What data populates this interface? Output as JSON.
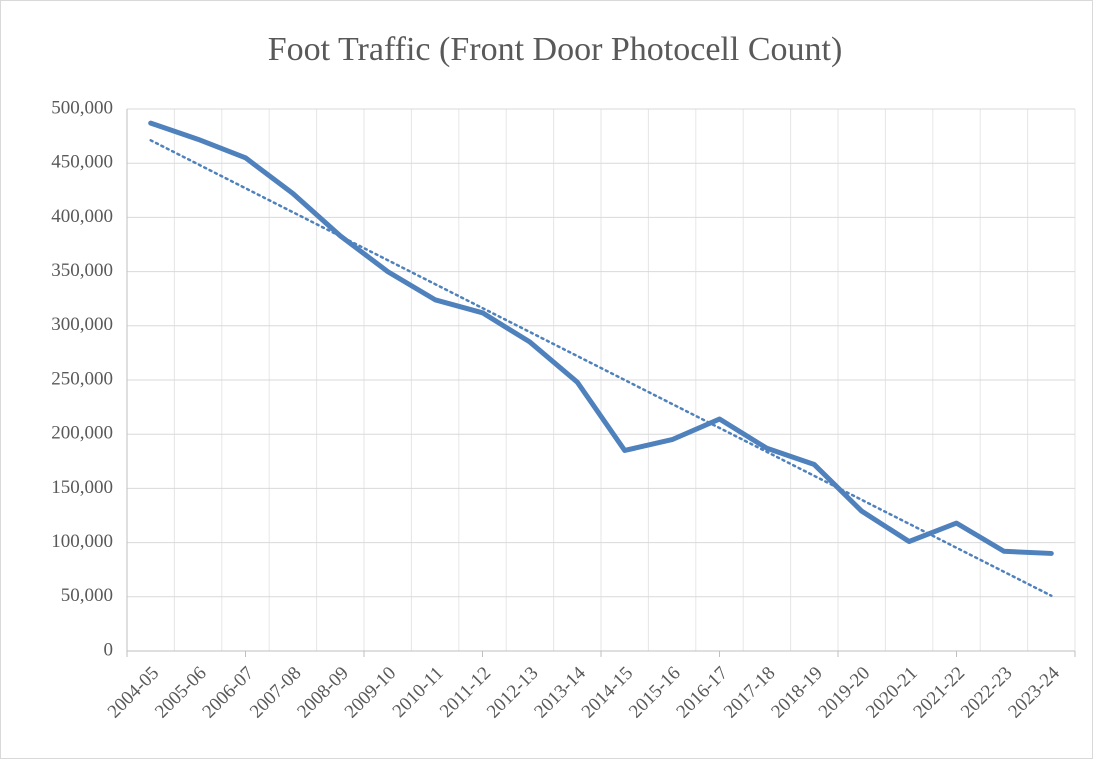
{
  "chart_data": {
    "type": "line",
    "title": "Foot Traffic (Front Door Photocell Count)",
    "categories": [
      "2004-05",
      "2005-06",
      "2006-07",
      "2007-08",
      "2008-09",
      "2009-10",
      "2010-11",
      "2011-12",
      "2012-13",
      "2013-14",
      "2014-15",
      "2015-16",
      "2016-17",
      "2017-18",
      "2018-19",
      "2019-20",
      "2020-21",
      "2021-22",
      "2022-23",
      "2023-24"
    ],
    "series": [
      {
        "color": "#4f81bd",
        "values": [
          487000,
          472000,
          455000,
          422000,
          383000,
          350000,
          324000,
          312000,
          285000,
          248000,
          185000,
          195000,
          214000,
          187000,
          172000,
          129000,
          101000,
          118000,
          92000,
          90000
        ]
      }
    ],
    "trendline": "linear",
    "ylim": [
      0,
      500000
    ],
    "yticks": [
      0,
      {
        "value": 50000,
        "label": "50,000"
      },
      {
        "value": 100000,
        "label": "100,000"
      },
      {
        "value": 150000,
        "label": "150,000"
      },
      {
        "value": 200000,
        "label": "200,000"
      },
      {
        "value": 250000,
        "label": "250,000"
      },
      {
        "value": 300000,
        "label": "300,000"
      },
      {
        "value": 350000,
        "label": "350,000"
      },
      {
        "value": 400000,
        "label": "400,000"
      },
      {
        "value": 450000,
        "label": "450,000"
      },
      {
        "value": 500000,
        "label": "500,000"
      }
    ],
    "grid": true
  }
}
